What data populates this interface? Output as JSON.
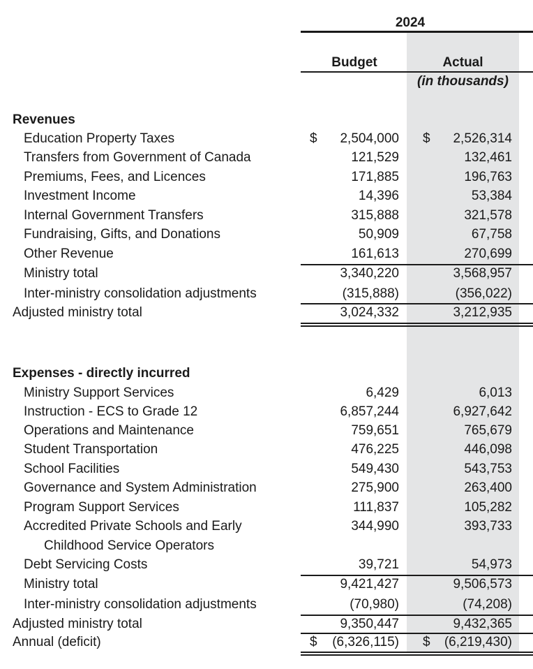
{
  "year": "2024",
  "columns": {
    "budget": "Budget",
    "actual": "Actual",
    "units": "(in thousands)"
  },
  "revenues": {
    "heading": "Revenues",
    "rows": [
      {
        "label": "Education Property Taxes",
        "budget": "2,504,000",
        "actual": "2,526,314",
        "currency": "$"
      },
      {
        "label": "Transfers from Government of Canada",
        "budget": "121,529",
        "actual": "132,461"
      },
      {
        "label": "Premiums, Fees, and Licences",
        "budget": "171,885",
        "actual": "196,763"
      },
      {
        "label": "Investment Income",
        "budget": "14,396",
        "actual": "53,384"
      },
      {
        "label": "Internal Government Transfers",
        "budget": "315,888",
        "actual": "321,578"
      },
      {
        "label": "Fundraising, Gifts, and Donations",
        "budget": "50,909",
        "actual": "67,758"
      },
      {
        "label": "Other Revenue",
        "budget": "161,613",
        "actual": "270,699"
      }
    ],
    "ministry_total": {
      "label": "Ministry total",
      "budget": "3,340,220",
      "actual": "3,568,957"
    },
    "consolidation": {
      "label": "Inter-ministry consolidation adjustments",
      "budget": "(315,888)",
      "actual": "(356,022)"
    },
    "adjusted_total": {
      "label": "Adjusted ministry total",
      "budget": "3,024,332",
      "actual": "3,212,935"
    }
  },
  "expenses": {
    "heading": "Expenses - directly incurred",
    "rows": [
      {
        "label": "Ministry Support Services",
        "budget": "6,429",
        "actual": "6,013"
      },
      {
        "label": "Instruction - ECS to Grade 12",
        "budget": "6,857,244",
        "actual": "6,927,642"
      },
      {
        "label": "Operations and Maintenance",
        "budget": "759,651",
        "actual": "765,679"
      },
      {
        "label": "Student Transportation",
        "budget": "476,225",
        "actual": "446,098"
      },
      {
        "label": "School Facilities",
        "budget": "549,430",
        "actual": "543,753"
      },
      {
        "label": "Governance and System Administration",
        "budget": "275,900",
        "actual": "263,400"
      },
      {
        "label": "Program Support Services",
        "budget": "111,837",
        "actual": "105,282"
      },
      {
        "label": "Accredited Private Schools and Early",
        "label_cont": "Childhood Service Operators",
        "budget": "344,990",
        "actual": "393,733"
      },
      {
        "label": "Debt Servicing Costs",
        "budget": "39,721",
        "actual": "54,973"
      }
    ],
    "ministry_total": {
      "label": "Ministry total",
      "budget": "9,421,427",
      "actual": "9,506,573"
    },
    "consolidation": {
      "label": "Inter-ministry consolidation adjustments",
      "budget": "(70,980)",
      "actual": "(74,208)"
    },
    "adjusted_total": {
      "label": "Adjusted ministry total",
      "budget": "9,350,447",
      "actual": "9,432,365"
    }
  },
  "annual_deficit": {
    "label": "Annual (deficit)",
    "budget": "(6,326,115)",
    "actual": "(6,219,430)",
    "currency": "$"
  }
}
